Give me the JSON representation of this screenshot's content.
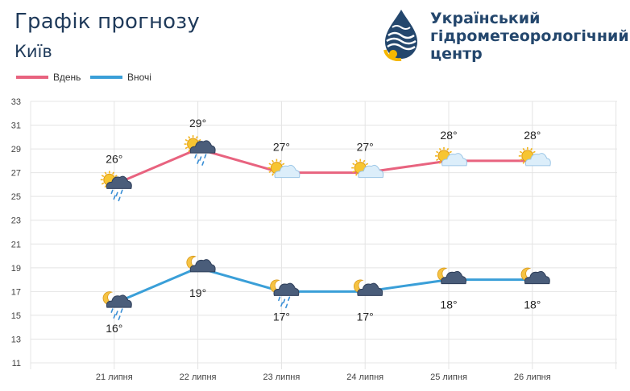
{
  "header": {
    "title": "Графік прогнозу",
    "city": "Київ"
  },
  "logo": {
    "line1": "Український",
    "line2": "гідрометеорологічний",
    "line3": "центр",
    "color_primary": "#24476d",
    "color_accent": "#f5b700"
  },
  "chart_data": {
    "type": "line",
    "x": [
      "21 липня",
      "22 липня",
      "23 липня",
      "24 липня",
      "25 липня",
      "26 липня"
    ],
    "ylim": [
      11,
      33
    ],
    "yticks": [
      11,
      13,
      15,
      17,
      19,
      21,
      23,
      25,
      27,
      29,
      31,
      33
    ],
    "grid": true,
    "legend_position": "top-left",
    "series": [
      {
        "name": "Вдень",
        "color": "#e8637f",
        "values": [
          26,
          29,
          27,
          27,
          28,
          28
        ],
        "labels": [
          "26°",
          "29°",
          "27°",
          "27°",
          "28°",
          "28°"
        ],
        "icons": [
          "sun-cloud-rain-icon",
          "sun-cloud-rain-icon",
          "sun-cloud-icon",
          "sun-cloud-icon",
          "sun-cloud-icon",
          "sun-cloud-icon"
        ]
      },
      {
        "name": "Вночі",
        "color": "#3a9fd8",
        "values": [
          16,
          19,
          17,
          17,
          18,
          18
        ],
        "labels": [
          "16°",
          "19°",
          "17°",
          "17°",
          "18°",
          "18°"
        ],
        "icons": [
          "moon-cloud-rain-icon",
          "moon-cloud-icon",
          "moon-cloud-rain-icon",
          "moon-cloud-icon",
          "moon-cloud-icon",
          "moon-cloud-icon"
        ]
      }
    ]
  }
}
